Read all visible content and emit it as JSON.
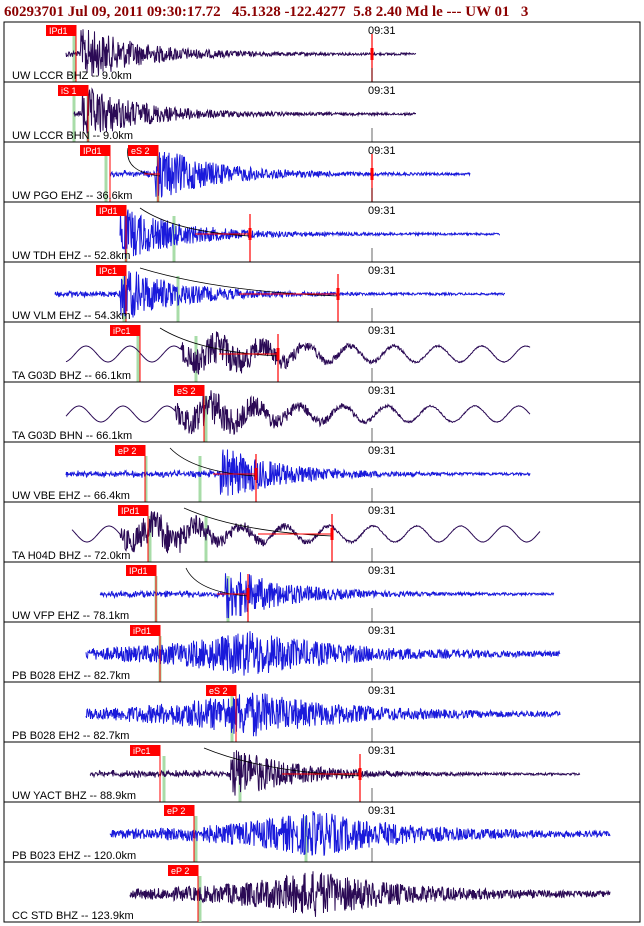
{
  "header": {
    "event_id": "60293701",
    "datetime": "Jul 09, 2011 09:30:17.72",
    "lat": "45.1328",
    "lon": "-122.4277",
    "depth_mag": "5.8 2.40",
    "mag_type": "Md le ---",
    "network": "UW 01",
    "page": "3"
  },
  "colors": {
    "border": "#000000",
    "trace_dark": "#2b0a55",
    "trace_blue": "#1a1adb",
    "pick_box": "#ff0000",
    "pick_line": "#ff0000",
    "marker_green": "#a8dca8",
    "curve": "#000000"
  },
  "panels": [
    {
      "label": "UW LCCR BHZ -- 9.0km",
      "time": "09:31",
      "pick": "IPd1",
      "trace_color": "dark"
    },
    {
      "label": "UW LCCR BHN -- 9.0km",
      "time": "09:31",
      "pick": "iS 1",
      "trace_color": "dark"
    },
    {
      "label": "UW PGO EHZ -- 36.6km",
      "time": "09:31",
      "pick": "IPd1",
      "pick2": "eS 2",
      "trace_color": "blue"
    },
    {
      "label": "UW TDH EHZ -- 52.8km",
      "time": "09:31",
      "pick": "IPd1",
      "trace_color": "blue"
    },
    {
      "label": "UW VLM EHZ -- 54.3km",
      "time": "09:31",
      "pick": "IPc1",
      "trace_color": "blue"
    },
    {
      "label": "TA G03D BHZ -- 66.1km",
      "time": "09:31",
      "pick": "iPc1",
      "trace_color": "dark"
    },
    {
      "label": "TA G03D BHN -- 66.1km",
      "time": "09:31",
      "pick": "eS 2",
      "trace_color": "dark"
    },
    {
      "label": "UW VBE EHZ -- 66.4km",
      "time": "09:31",
      "pick": "eP 2",
      "trace_color": "blue"
    },
    {
      "label": "TA H04D BHZ -- 72.0km",
      "time": "09:31",
      "pick": "IPd1",
      "trace_color": "dark"
    },
    {
      "label": "UW VFP EHZ -- 78.1km",
      "time": "09:31",
      "pick": "IPd1",
      "trace_color": "blue"
    },
    {
      "label": "PB B028 EHZ -- 82.7km",
      "time": "09:31",
      "pick": "iPd1",
      "trace_color": "blue"
    },
    {
      "label": "PB B028 EH2 -- 82.7km",
      "time": "09:31",
      "pick": "eS 2",
      "trace_color": "blue"
    },
    {
      "label": "UW YACT BHZ -- 88.9km",
      "time": "09:31",
      "pick": "iPc1",
      "trace_color": "dark"
    },
    {
      "label": "PB B023 EHZ -- 120.0km",
      "time": "09:31",
      "pick": "eP 2",
      "trace_color": "blue"
    },
    {
      "label": "CC STD BHZ -- 123.9km",
      "time": "",
      "pick": "eP 2",
      "trace_color": "dark"
    }
  ]
}
